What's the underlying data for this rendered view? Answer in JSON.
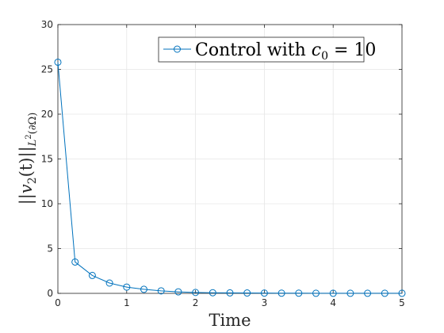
{
  "chart_data": {
    "type": "line",
    "xlabel": "Time",
    "ylabel": "||v2(t)||L2(∂Ω)",
    "xlim": [
      0,
      5
    ],
    "ylim": [
      0,
      30
    ],
    "x_ticks": [
      "0",
      "1",
      "2",
      "3",
      "4",
      "5"
    ],
    "y_ticks": [
      "0",
      "5",
      "10",
      "15",
      "20",
      "25",
      "30"
    ],
    "grid": true,
    "legend_position": "top-right",
    "series": [
      {
        "name": "Control with c0 = 10",
        "color": "#0072BD",
        "marker": "circle",
        "x": [
          0,
          0.25,
          0.5,
          0.75,
          1.0,
          1.25,
          1.5,
          1.75,
          2.0,
          2.25,
          2.5,
          2.75,
          3.0,
          3.25,
          3.5,
          3.75,
          4.0,
          4.25,
          4.5,
          4.75,
          5.0
        ],
        "y": [
          25.8,
          3.5,
          2.0,
          1.15,
          0.7,
          0.45,
          0.28,
          0.17,
          0.1,
          0.07,
          0.05,
          0.04,
          0.03,
          0.02,
          0.02,
          0.01,
          0.01,
          0.01,
          0.01,
          0.01,
          0.01
        ]
      }
    ]
  },
  "legend": {
    "label_prefix": "Control with ",
    "label_var": "c",
    "label_sub": "0",
    "label_eq": " = 10"
  },
  "axis_titles": {
    "x": "Time",
    "y_main": "||v",
    "y_sub": "2",
    "y_mid": "(t)||",
    "y_sub2": "L",
    "y_sup": "2",
    "y_tail": "(∂Ω)"
  }
}
